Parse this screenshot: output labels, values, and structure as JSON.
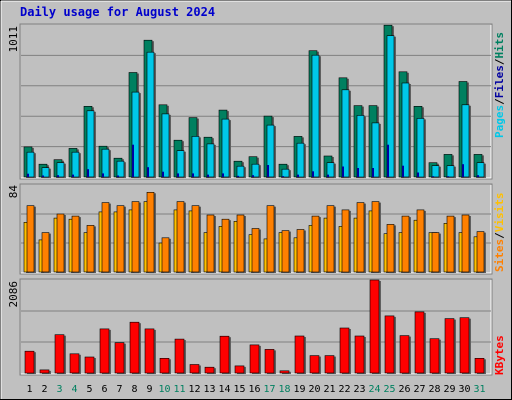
{
  "title": "Daily usage for August 2024",
  "colors": {
    "frame_bg": "#c0c0c0",
    "plot_bg": "#c0c0c0",
    "grid": "#808080",
    "title": "#0000cc",
    "hits": "#00c8e8",
    "files": "#008060",
    "pages": "#0000a0",
    "visits": "#ffc000",
    "sites": "#ff8000",
    "kbytes": "#ff0000",
    "weekend_label": "#008060",
    "weekday_label": "#000000"
  },
  "chart_data": [
    {
      "type": "bar",
      "panel": "top",
      "ymax_label": "1011",
      "ylim": [
        0,
        1011
      ],
      "legend": [
        "Pages",
        "Files",
        "Hits"
      ],
      "legend_sep": "/",
      "x": [
        "1",
        "2",
        "3",
        "4",
        "5",
        "6",
        "7",
        "8",
        "9",
        "10",
        "11",
        "12",
        "13",
        "14",
        "15",
        "16",
        "17",
        "18",
        "19",
        "20",
        "21",
        "22",
        "23",
        "24",
        "25",
        "26",
        "27",
        "28",
        "29",
        "30",
        "31"
      ],
      "weekend": [
        3,
        4,
        10,
        11,
        17,
        18,
        24,
        25,
        31
      ],
      "series": [
        {
          "name": "Hits",
          "values": [
            165,
            62,
            95,
            165,
            440,
            185,
            105,
            565,
            830,
            420,
            175,
            270,
            220,
            385,
            72,
            85,
            345,
            52,
            225,
            810,
            95,
            580,
            410,
            360,
            940,
            625,
            390,
            75,
            75,
            480,
            95
          ]
        },
        {
          "name": "Files",
          "values": [
            200,
            85,
            115,
            190,
            470,
            205,
            125,
            695,
            910,
            480,
            245,
            395,
            265,
            445,
            105,
            135,
            405,
            85,
            270,
            840,
            140,
            660,
            475,
            475,
            1010,
            700,
            470,
            95,
            150,
            635,
            150
          ]
        },
        {
          "name": "Pages",
          "values": [
            22,
            10,
            12,
            16,
            52,
            24,
            10,
            215,
            65,
            35,
            24,
            24,
            16,
            24,
            8,
            12,
            80,
            6,
            16,
            38,
            16,
            70,
            60,
            60,
            215,
            75,
            30,
            5,
            5,
            85,
            12
          ]
        }
      ]
    },
    {
      "type": "bar",
      "panel": "middle",
      "ymax_label": "84",
      "ylim": [
        0,
        84
      ],
      "legend": [
        "Sites",
        "Visits"
      ],
      "legend_sep": "/",
      "series": [
        {
          "name": "Visits",
          "values": [
            48,
            31,
            52,
            51,
            38,
            58,
            58,
            60,
            68,
            28,
            60,
            59,
            38,
            44,
            49,
            36,
            32,
            38,
            33,
            45,
            52,
            44,
            52,
            59,
            37,
            38,
            50,
            38,
            47,
            38,
            34
          ]
        },
        {
          "name": "Sites",
          "values": [
            64,
            38,
            56,
            54,
            45,
            67,
            64,
            68,
            77,
            33,
            68,
            64,
            55,
            51,
            55,
            42,
            64,
            40,
            41,
            54,
            64,
            60,
            67,
            68,
            46,
            54,
            60,
            38,
            54,
            55,
            39
          ]
        }
      ]
    },
    {
      "type": "bar",
      "panel": "bottom",
      "ymax_label": "2086",
      "ylim": [
        0,
        2086
      ],
      "legend": [
        "KBytes"
      ],
      "legend_sep": "/",
      "series": [
        {
          "name": "KBytes",
          "values": [
            490,
            70,
            860,
            430,
            360,
            990,
            680,
            1140,
            990,
            330,
            760,
            190,
            130,
            825,
            160,
            630,
            530,
            50,
            830,
            390,
            390,
            1010,
            830,
            2086,
            1280,
            840,
            1370,
            770,
            1220,
            1240,
            330
          ]
        }
      ]
    }
  ]
}
